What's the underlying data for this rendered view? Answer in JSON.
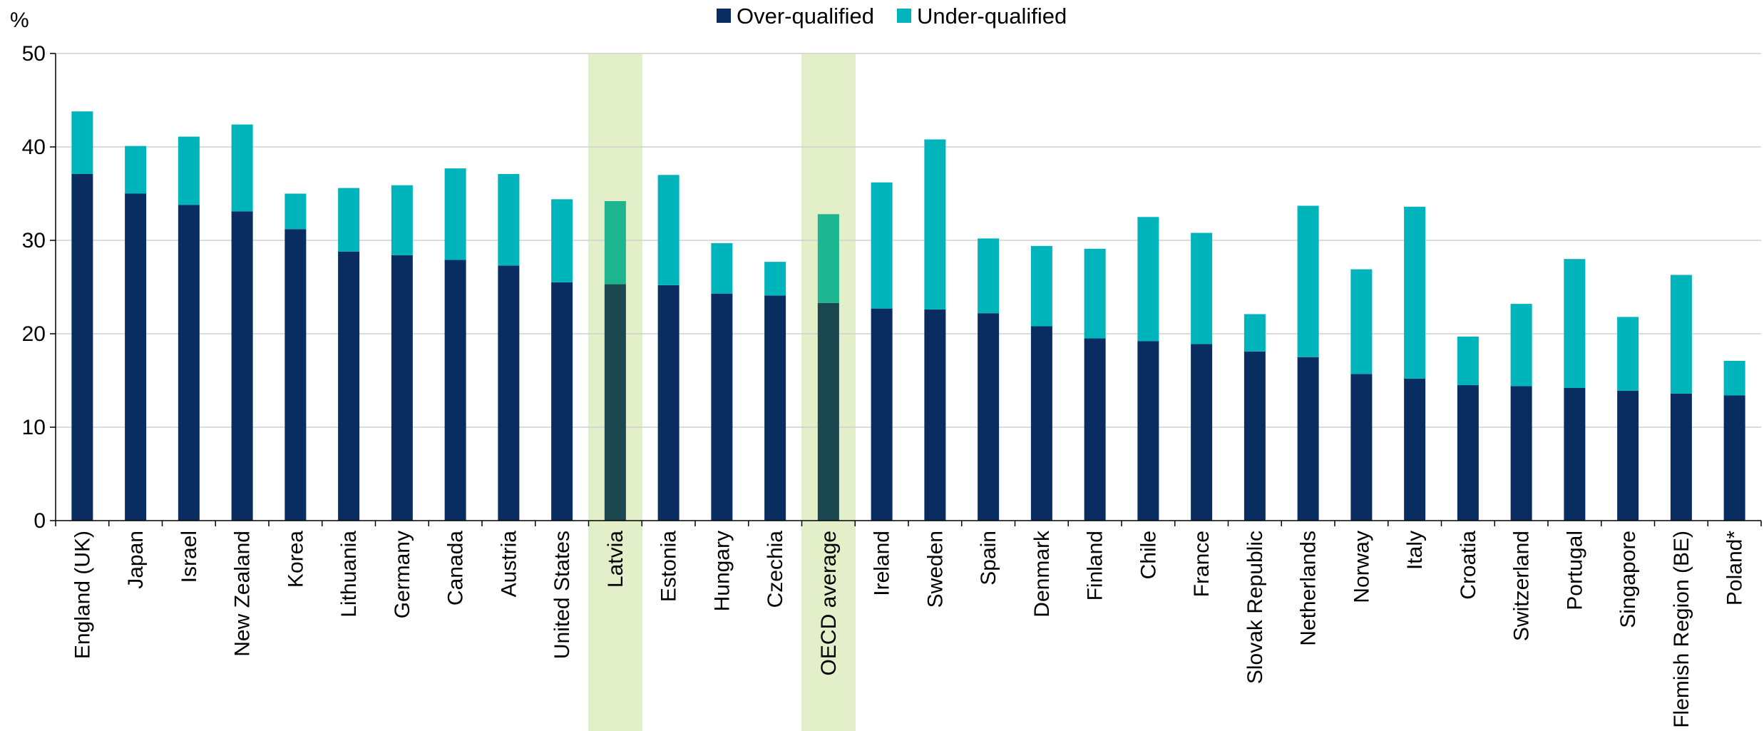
{
  "chart_data": {
    "type": "bar",
    "stacked": true,
    "ylabel": "%",
    "ylim": [
      0,
      50
    ],
    "yticks": [
      0,
      10,
      20,
      30,
      40,
      50
    ],
    "grid": true,
    "legend_position": "top-center",
    "categories": [
      "England (UK)",
      "Japan",
      "Israel",
      "New Zealand",
      "Korea",
      "Lithuania",
      "Germany",
      "Canada",
      "Austria",
      "United States",
      "Latvia",
      "Estonia",
      "Hungary",
      "Czechia",
      "OECD average",
      "Ireland",
      "Sweden",
      "Spain",
      "Denmark",
      "Finland",
      "Chile",
      "France",
      "Slovak Republic",
      "Netherlands",
      "Norway",
      "Italy",
      "Croatia",
      "Switzerland",
      "Portugal",
      "Singapore",
      "Flemish Region (BE)",
      "Poland*"
    ],
    "highlighted_categories": [
      "Latvia",
      "OECD average"
    ],
    "series": [
      {
        "name": "Over-qualified",
        "color": "#0a2d61",
        "highlight_color": "#1b4750",
        "values": [
          37.1,
          35.0,
          33.8,
          33.1,
          31.2,
          28.8,
          28.4,
          27.9,
          27.3,
          25.5,
          25.3,
          25.2,
          24.3,
          24.1,
          23.3,
          22.7,
          22.6,
          22.2,
          20.8,
          19.5,
          19.2,
          18.9,
          18.1,
          17.5,
          15.7,
          15.2,
          14.5,
          14.4,
          14.2,
          13.9,
          13.6,
          13.4
        ]
      },
      {
        "name": "Under-qualified",
        "color": "#00b4bc",
        "highlight_color": "#1cb58f",
        "values": [
          6.7,
          5.1,
          7.3,
          9.3,
          3.8,
          6.8,
          7.5,
          9.8,
          9.8,
          8.9,
          8.9,
          11.8,
          5.4,
          3.6,
          9.5,
          13.5,
          18.2,
          8.0,
          8.6,
          9.6,
          13.3,
          11.9,
          4.0,
          16.2,
          11.2,
          18.4,
          5.2,
          8.8,
          13.8,
          7.9,
          12.7,
          3.7
        ]
      }
    ],
    "highlight_band_color": "#e2efc9"
  }
}
